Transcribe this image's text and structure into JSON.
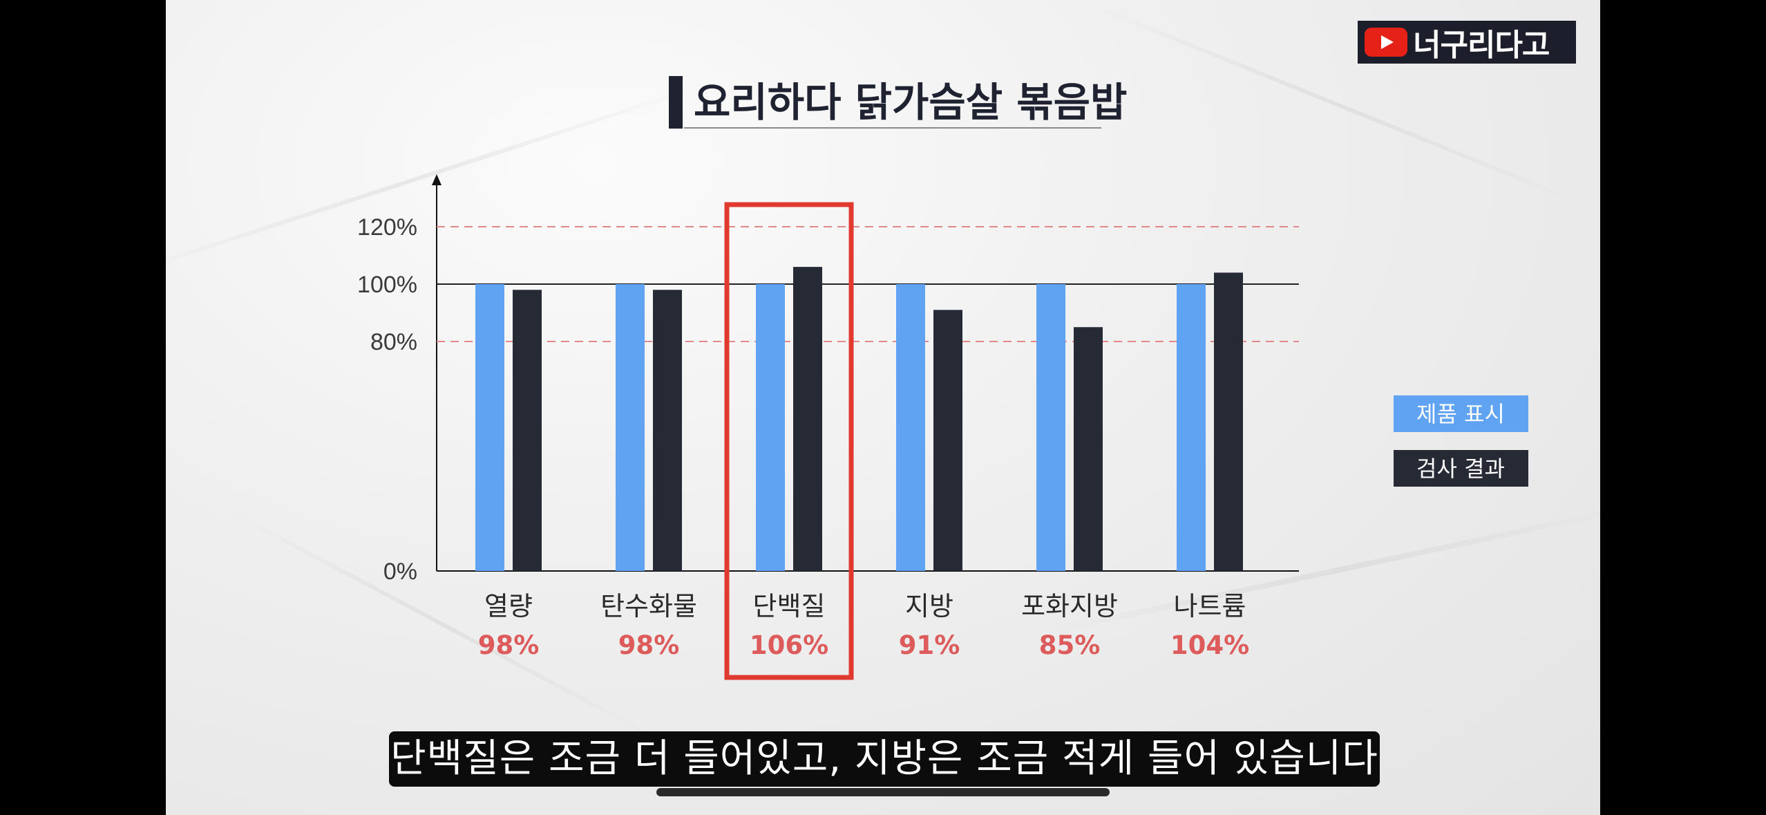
{
  "channel": {
    "logo_icon": "youtube-play-icon",
    "name": "너구리다고"
  },
  "subtitle_caption": "단백질은 조금 더 들어있고, 지방은 조금 적게 들어 있습니다",
  "colors": {
    "product_label": "#5fa3f2",
    "test_result": "#262a35",
    "highlight_box": "#e03a2f",
    "percent_text": "#dd5b5b",
    "reference_dashed": "#e38888"
  },
  "chart_data": {
    "type": "bar",
    "title": "요리하다 닭가슴살 볶음밥",
    "categories": [
      "열량",
      "탄수화물",
      "단백질",
      "지방",
      "포화지방",
      "나트륨"
    ],
    "series": [
      {
        "name": "제품 표시",
        "values": [
          100,
          100,
          100,
          100,
          100,
          100
        ]
      },
      {
        "name": "검사 결과",
        "values": [
          98,
          98,
          106,
          91,
          85,
          104
        ]
      }
    ],
    "percent_labels": [
      "98%",
      "98%",
      "106%",
      "91%",
      "85%",
      "104%"
    ],
    "y_ticks": [
      {
        "value": 0,
        "label": "0%"
      },
      {
        "value": 80,
        "label": "80%"
      },
      {
        "value": 100,
        "label": "100%"
      },
      {
        "value": 120,
        "label": "120%"
      }
    ],
    "reference_lines": [
      {
        "value": 120,
        "style": "dashed"
      },
      {
        "value": 100,
        "style": "solid"
      },
      {
        "value": 80,
        "style": "dashed"
      }
    ],
    "ylim": [
      0,
      140
    ],
    "highlight_category": "단백질",
    "legend": {
      "placement": "right"
    },
    "xlabel": "",
    "ylabel": ""
  }
}
